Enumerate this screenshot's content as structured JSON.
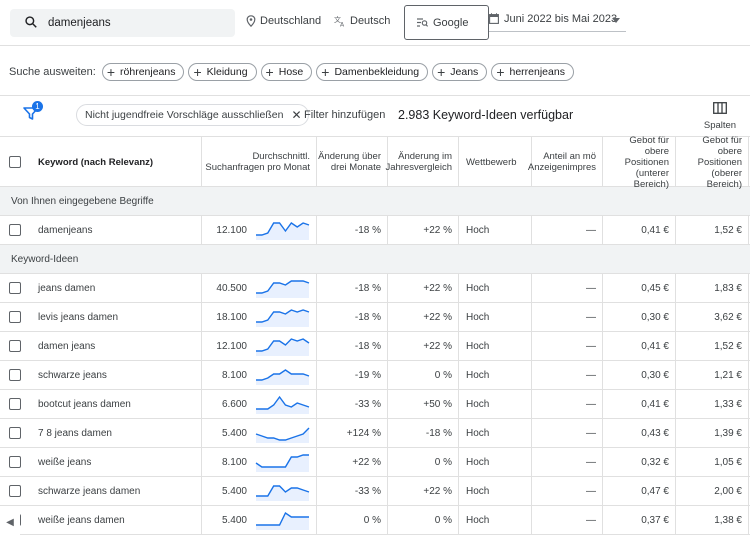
{
  "search": {
    "value": "damenjeans"
  },
  "location": "Deutschland",
  "language": "Deutsch",
  "network": "Google",
  "date_range": "Juni 2022 bis Mai 2023",
  "expand": {
    "label": "Suche ausweiten:",
    "chips": [
      "röhrenjeans",
      "Kleidung",
      "Hose",
      "Damenbekleidung",
      "Jeans",
      "herrenjeans"
    ]
  },
  "filters": {
    "badge_count": "1",
    "chip_label": "Nicht jugendfreie Vorschläge ausschließen",
    "add_filter": "Filter hinzufügen",
    "ideas_available": "2.983 Keyword-Ideen verfügbar",
    "columns_label": "Spalten"
  },
  "columns": {
    "keyword": "Keyword (nach Relevanz)",
    "avg_searches": [
      "Durchschnittl.",
      "Suchanfragen pro Monat"
    ],
    "three_month": [
      "Änderung über",
      "drei Monate"
    ],
    "yoy": [
      "Änderung im",
      "Jahresvergleich"
    ],
    "competition": "Wettbewerb",
    "share": [
      "Anteil an mö",
      "Anzeigenimpres"
    ],
    "bid_low": [
      "Gebot für obere",
      "Positionen",
      "(unterer",
      "Bereich)"
    ],
    "bid_high": [
      "Gebot für obere",
      "Positionen",
      "(oberer",
      "Bereich)"
    ]
  },
  "groups": [
    {
      "title": "Von Ihnen eingegebene Begriffe",
      "rows": [
        {
          "keyword": "damenjeans",
          "searches": "12.100",
          "three_month": "-18 %",
          "yoy": "+22 %",
          "competition": "Hoch",
          "share": "—",
          "bid_low": "0,41 €",
          "bid_high": "1,52 €",
          "trend": [
            2,
            2,
            3,
            8,
            8,
            4,
            8,
            6,
            8,
            7
          ]
        }
      ]
    },
    {
      "title": "Keyword-Ideen",
      "rows": [
        {
          "keyword": "jeans damen",
          "searches": "40.500",
          "three_month": "-18 %",
          "yoy": "+22 %",
          "competition": "Hoch",
          "share": "—",
          "bid_low": "0,45 €",
          "bid_high": "1,83 €",
          "trend": [
            2,
            2,
            3,
            7,
            7,
            6,
            8,
            8,
            8,
            7
          ]
        },
        {
          "keyword": "levis jeans damen",
          "searches": "18.100",
          "three_month": "-18 %",
          "yoy": "+22 %",
          "competition": "Hoch",
          "share": "—",
          "bid_low": "0,30 €",
          "bid_high": "3,62 €",
          "trend": [
            2,
            2,
            3,
            7,
            7,
            6,
            8,
            7,
            8,
            7
          ]
        },
        {
          "keyword": "damen jeans",
          "searches": "12.100",
          "three_month": "-18 %",
          "yoy": "+22 %",
          "competition": "Hoch",
          "share": "—",
          "bid_low": "0,41 €",
          "bid_high": "1,52 €",
          "trend": [
            2,
            2,
            3,
            7,
            7,
            5,
            8,
            7,
            8,
            6
          ]
        },
        {
          "keyword": "schwarze jeans",
          "searches": "8.100",
          "three_month": "-19 %",
          "yoy": "0 %",
          "competition": "Hoch",
          "share": "—",
          "bid_low": "0,30 €",
          "bid_high": "1,21 €",
          "trend": [
            2,
            2,
            3,
            5,
            5,
            7,
            5,
            5,
            5,
            4
          ]
        },
        {
          "keyword": "bootcut jeans damen",
          "searches": "6.600",
          "three_month": "-33 %",
          "yoy": "+50 %",
          "competition": "Hoch",
          "share": "—",
          "bid_low": "0,41 €",
          "bid_high": "1,33 €",
          "trend": [
            2,
            2,
            2,
            4,
            8,
            4,
            3,
            5,
            4,
            3
          ]
        },
        {
          "keyword": "7 8 jeans damen",
          "searches": "5.400",
          "three_month": "+124 %",
          "yoy": "-18 %",
          "competition": "Hoch",
          "share": "—",
          "bid_low": "0,43 €",
          "bid_high": "1,39 €",
          "trend": [
            4,
            3,
            2,
            2,
            1,
            1,
            2,
            3,
            4,
            7
          ]
        },
        {
          "keyword": "weiße jeans",
          "searches": "8.100",
          "three_month": "+22 %",
          "yoy": "0 %",
          "competition": "Hoch",
          "share": "—",
          "bid_low": "0,32 €",
          "bid_high": "1,05 €",
          "trend": [
            4,
            2,
            2,
            2,
            2,
            2,
            7,
            7,
            8,
            8
          ]
        },
        {
          "keyword": "schwarze jeans damen",
          "searches": "5.400",
          "three_month": "-33 %",
          "yoy": "+22 %",
          "competition": "Hoch",
          "share": "—",
          "bid_low": "0,47 €",
          "bid_high": "2,00 €",
          "trend": [
            2,
            2,
            2,
            7,
            7,
            4,
            6,
            6,
            5,
            4
          ]
        },
        {
          "keyword": "weiße jeans damen",
          "searches": "5.400",
          "three_month": "0 %",
          "yoy": "0 %",
          "competition": "Hoch",
          "share": "—",
          "bid_low": "0,37 €",
          "bid_high": "1,38 €",
          "trend": [
            2,
            2,
            2,
            2,
            2,
            8,
            6,
            6,
            6,
            6
          ]
        }
      ]
    }
  ],
  "colors": {
    "accent": "#1a73e8",
    "spark_fill": "#e8f0fe"
  }
}
